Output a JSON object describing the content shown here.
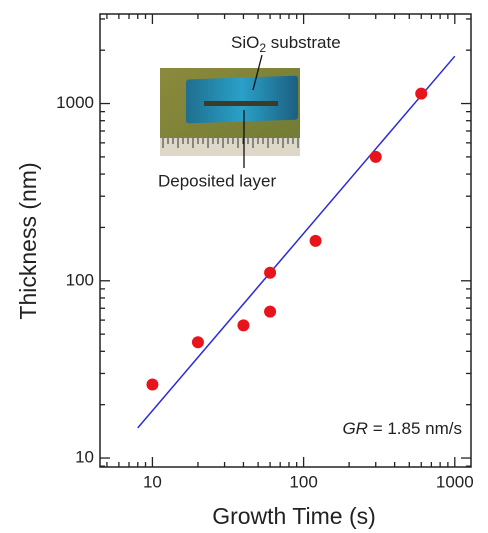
{
  "chart_data": {
    "type": "scatter",
    "x_label": "Growth Time (s)",
    "y_label": "Thickness (nm)",
    "xscale": "log",
    "yscale": "log",
    "xlim": [
      4.5,
      1280
    ],
    "ylim": [
      8.9,
      3200
    ],
    "xticks": [
      10,
      100,
      1000
    ],
    "yticks": [
      10,
      100,
      1000
    ],
    "minor_ticks": true,
    "series": [
      {
        "type": "scatter",
        "color": "#e8141b",
        "x": [
          10,
          20,
          40,
          60,
          60,
          120,
          300,
          600
        ],
        "values": [
          26,
          45,
          56,
          67,
          111,
          168,
          500,
          1138
        ]
      },
      {
        "type": "line",
        "color": "#2b2bd9",
        "x": [
          8,
          1000
        ],
        "values": [
          14.8,
          1850
        ]
      }
    ],
    "annotation": {
      "symbol": "GR",
      "text": "= 1.85 nm/s"
    },
    "inset": {
      "substrate_label": [
        "SiO",
        "2",
        " substrate"
      ],
      "layer_label": "Deposited layer"
    }
  }
}
